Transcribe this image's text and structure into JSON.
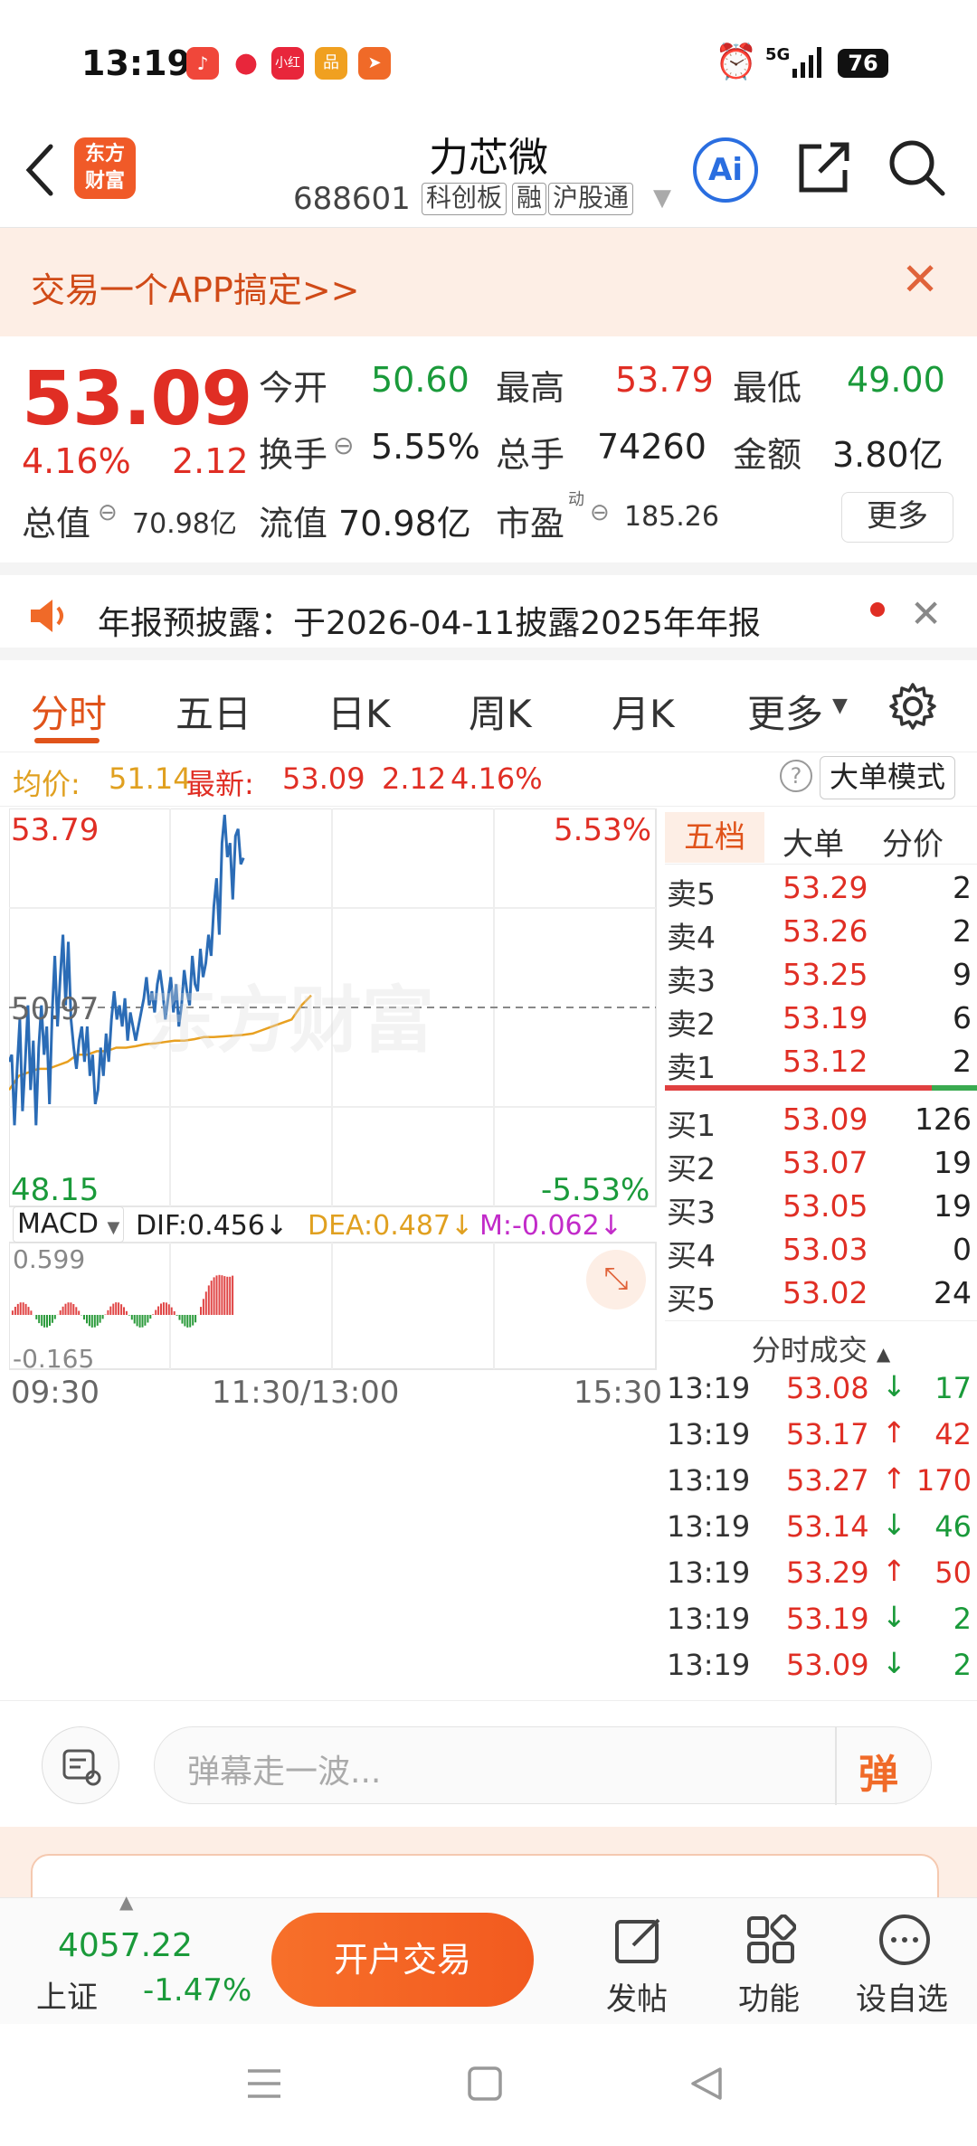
{
  "status": {
    "time": "13:19",
    "network": "5G",
    "battery": "76"
  },
  "header": {
    "logo_text_1": "东方",
    "logo_text_2": "财富",
    "stock_name": "力芯微",
    "stock_code": "688601",
    "tags": [
      "科创板",
      "融",
      "沪股通"
    ],
    "ai_label": "Ai"
  },
  "banner": {
    "text": "交易一个APP搞定>>"
  },
  "quote": {
    "price": "53.09",
    "change_pct": "4.16%",
    "change": "2.12",
    "open_label": "今开",
    "open": "50.60",
    "high_label": "最高",
    "high": "53.79",
    "low_label": "最低",
    "low": "49.00",
    "turnover_label": "换手",
    "turnover": "5.55%",
    "volume_label": "总手",
    "volume": "74260",
    "amount_label": "金额",
    "amount": "3.80亿",
    "mktcap_label": "总值",
    "mktcap": "70.98亿",
    "float_label": "流值",
    "float": "70.98亿",
    "pe_label": "市盈",
    "pe_sup": "动",
    "pe": "185.26",
    "more": "更多"
  },
  "notice": {
    "text": "年报预披露：于2026-04-11披露2025年年报"
  },
  "tabs": [
    "分时",
    "五日",
    "日K",
    "周K",
    "月K",
    "更多"
  ],
  "avg_row": {
    "avg_label": "均价:",
    "avg": "51.14",
    "latest_label": "最新:",
    "latest": "53.09",
    "change": "2.12",
    "change_pct": "4.16%",
    "big_order": "大单模式"
  },
  "chart": {
    "y_top": "53.79",
    "y_mid": "50.97",
    "y_bottom": "48.15",
    "pct_top": "5.53%",
    "pct_bottom": "-5.53%",
    "watermark": "东方财富",
    "macd_label": "MACD",
    "dif": "DIF:0.456↓",
    "dea": "DEA:0.487↓",
    "m": "M:-0.062↓",
    "macd_top": "0.599",
    "macd_bottom": "-0.165",
    "time_start": "09:30",
    "time_mid": "11:30/13:00",
    "time_end": "15:30"
  },
  "chart_data": {
    "type": "line",
    "series": [
      {
        "values": [
          50.2,
          50.3,
          49.3,
          50.1,
          50.8,
          49.5,
          50.2,
          51.0,
          49.8,
          50.5,
          49.3,
          50.4,
          51.0,
          50.3,
          50.7,
          49.6,
          50.9,
          51.7,
          50.7,
          51.4,
          52.0,
          51.0,
          51.9,
          50.8,
          50.4,
          50.1,
          50.5,
          50.7,
          50.2,
          50.7,
          50.0,
          50.3,
          49.6,
          49.8,
          50.4,
          50.0,
          50.6,
          50.2,
          50.8,
          51.2,
          50.8,
          51.0,
          50.7,
          51.1,
          50.5,
          50.9,
          50.7,
          50.5,
          50.7,
          50.9,
          51.1,
          51.4,
          51.0,
          51.2,
          50.9,
          51.3,
          51.5,
          51.2,
          50.8,
          51.1,
          51.4,
          50.9,
          51.3,
          50.7,
          51.0,
          51.5,
          51.2,
          51.0,
          51.7,
          51.3,
          51.2,
          51.8,
          51.4,
          51.6,
          52.0,
          51.7,
          52.4,
          52.8,
          52.0,
          53.3,
          53.7,
          53.1,
          53.3,
          52.5,
          53.4,
          53.5,
          53.0,
          53.09
        ]
      },
      {
        "values": [
          49.8,
          50.0,
          50.05,
          50.1,
          50.1,
          50.15,
          50.2,
          50.3,
          50.3,
          50.35,
          50.35,
          50.4,
          50.4,
          50.42,
          50.45,
          50.46,
          50.48,
          50.5,
          50.5,
          50.52,
          50.55,
          50.55,
          50.56,
          50.57,
          50.58,
          50.6,
          50.65,
          50.7,
          50.75,
          50.8,
          51.0,
          51.14
        ]
      }
    ],
    "ylim": [
      48.15,
      53.79
    ],
    "x_ticks": [
      "09:30",
      "11:30/13:00",
      "15:30"
    ]
  },
  "order_book": {
    "tabs": [
      "五档",
      "大单",
      "分价"
    ],
    "sells": [
      {
        "label": "卖5",
        "price": "53.29",
        "qty": "2"
      },
      {
        "label": "卖4",
        "price": "53.26",
        "qty": "2"
      },
      {
        "label": "卖3",
        "price": "53.25",
        "qty": "9"
      },
      {
        "label": "卖2",
        "price": "53.19",
        "qty": "6"
      },
      {
        "label": "卖1",
        "price": "53.12",
        "qty": "2"
      }
    ],
    "buys": [
      {
        "label": "买1",
        "price": "53.09",
        "qty": "126"
      },
      {
        "label": "买2",
        "price": "53.07",
        "qty": "19"
      },
      {
        "label": "买3",
        "price": "53.05",
        "qty": "19"
      },
      {
        "label": "买4",
        "price": "53.03",
        "qty": "0"
      },
      {
        "label": "买5",
        "price": "53.02",
        "qty": "24"
      }
    ],
    "ticks_title": "分时成交",
    "ticks": [
      {
        "time": "13:19",
        "price": "53.08",
        "dir": "↓",
        "qty": "17"
      },
      {
        "time": "13:19",
        "price": "53.17",
        "dir": "↑",
        "qty": "42"
      },
      {
        "time": "13:19",
        "price": "53.27",
        "dir": "↑",
        "qty": "170"
      },
      {
        "time": "13:19",
        "price": "53.14",
        "dir": "↓",
        "qty": "46"
      },
      {
        "time": "13:19",
        "price": "53.29",
        "dir": "↑",
        "qty": "50"
      },
      {
        "time": "13:19",
        "price": "53.19",
        "dir": "↓",
        "qty": "2"
      },
      {
        "time": "13:19",
        "price": "53.09",
        "dir": "↓",
        "qty": "2"
      }
    ]
  },
  "danmu": {
    "placeholder": "弹幕走一波...",
    "send": "弹"
  },
  "bottombar": {
    "index_value": "4057.22",
    "index_name": "上证",
    "index_change": "-1.47%",
    "trade_button": "开户交易",
    "post": "发帖",
    "functions": "功能",
    "watchlist": "设自选"
  }
}
